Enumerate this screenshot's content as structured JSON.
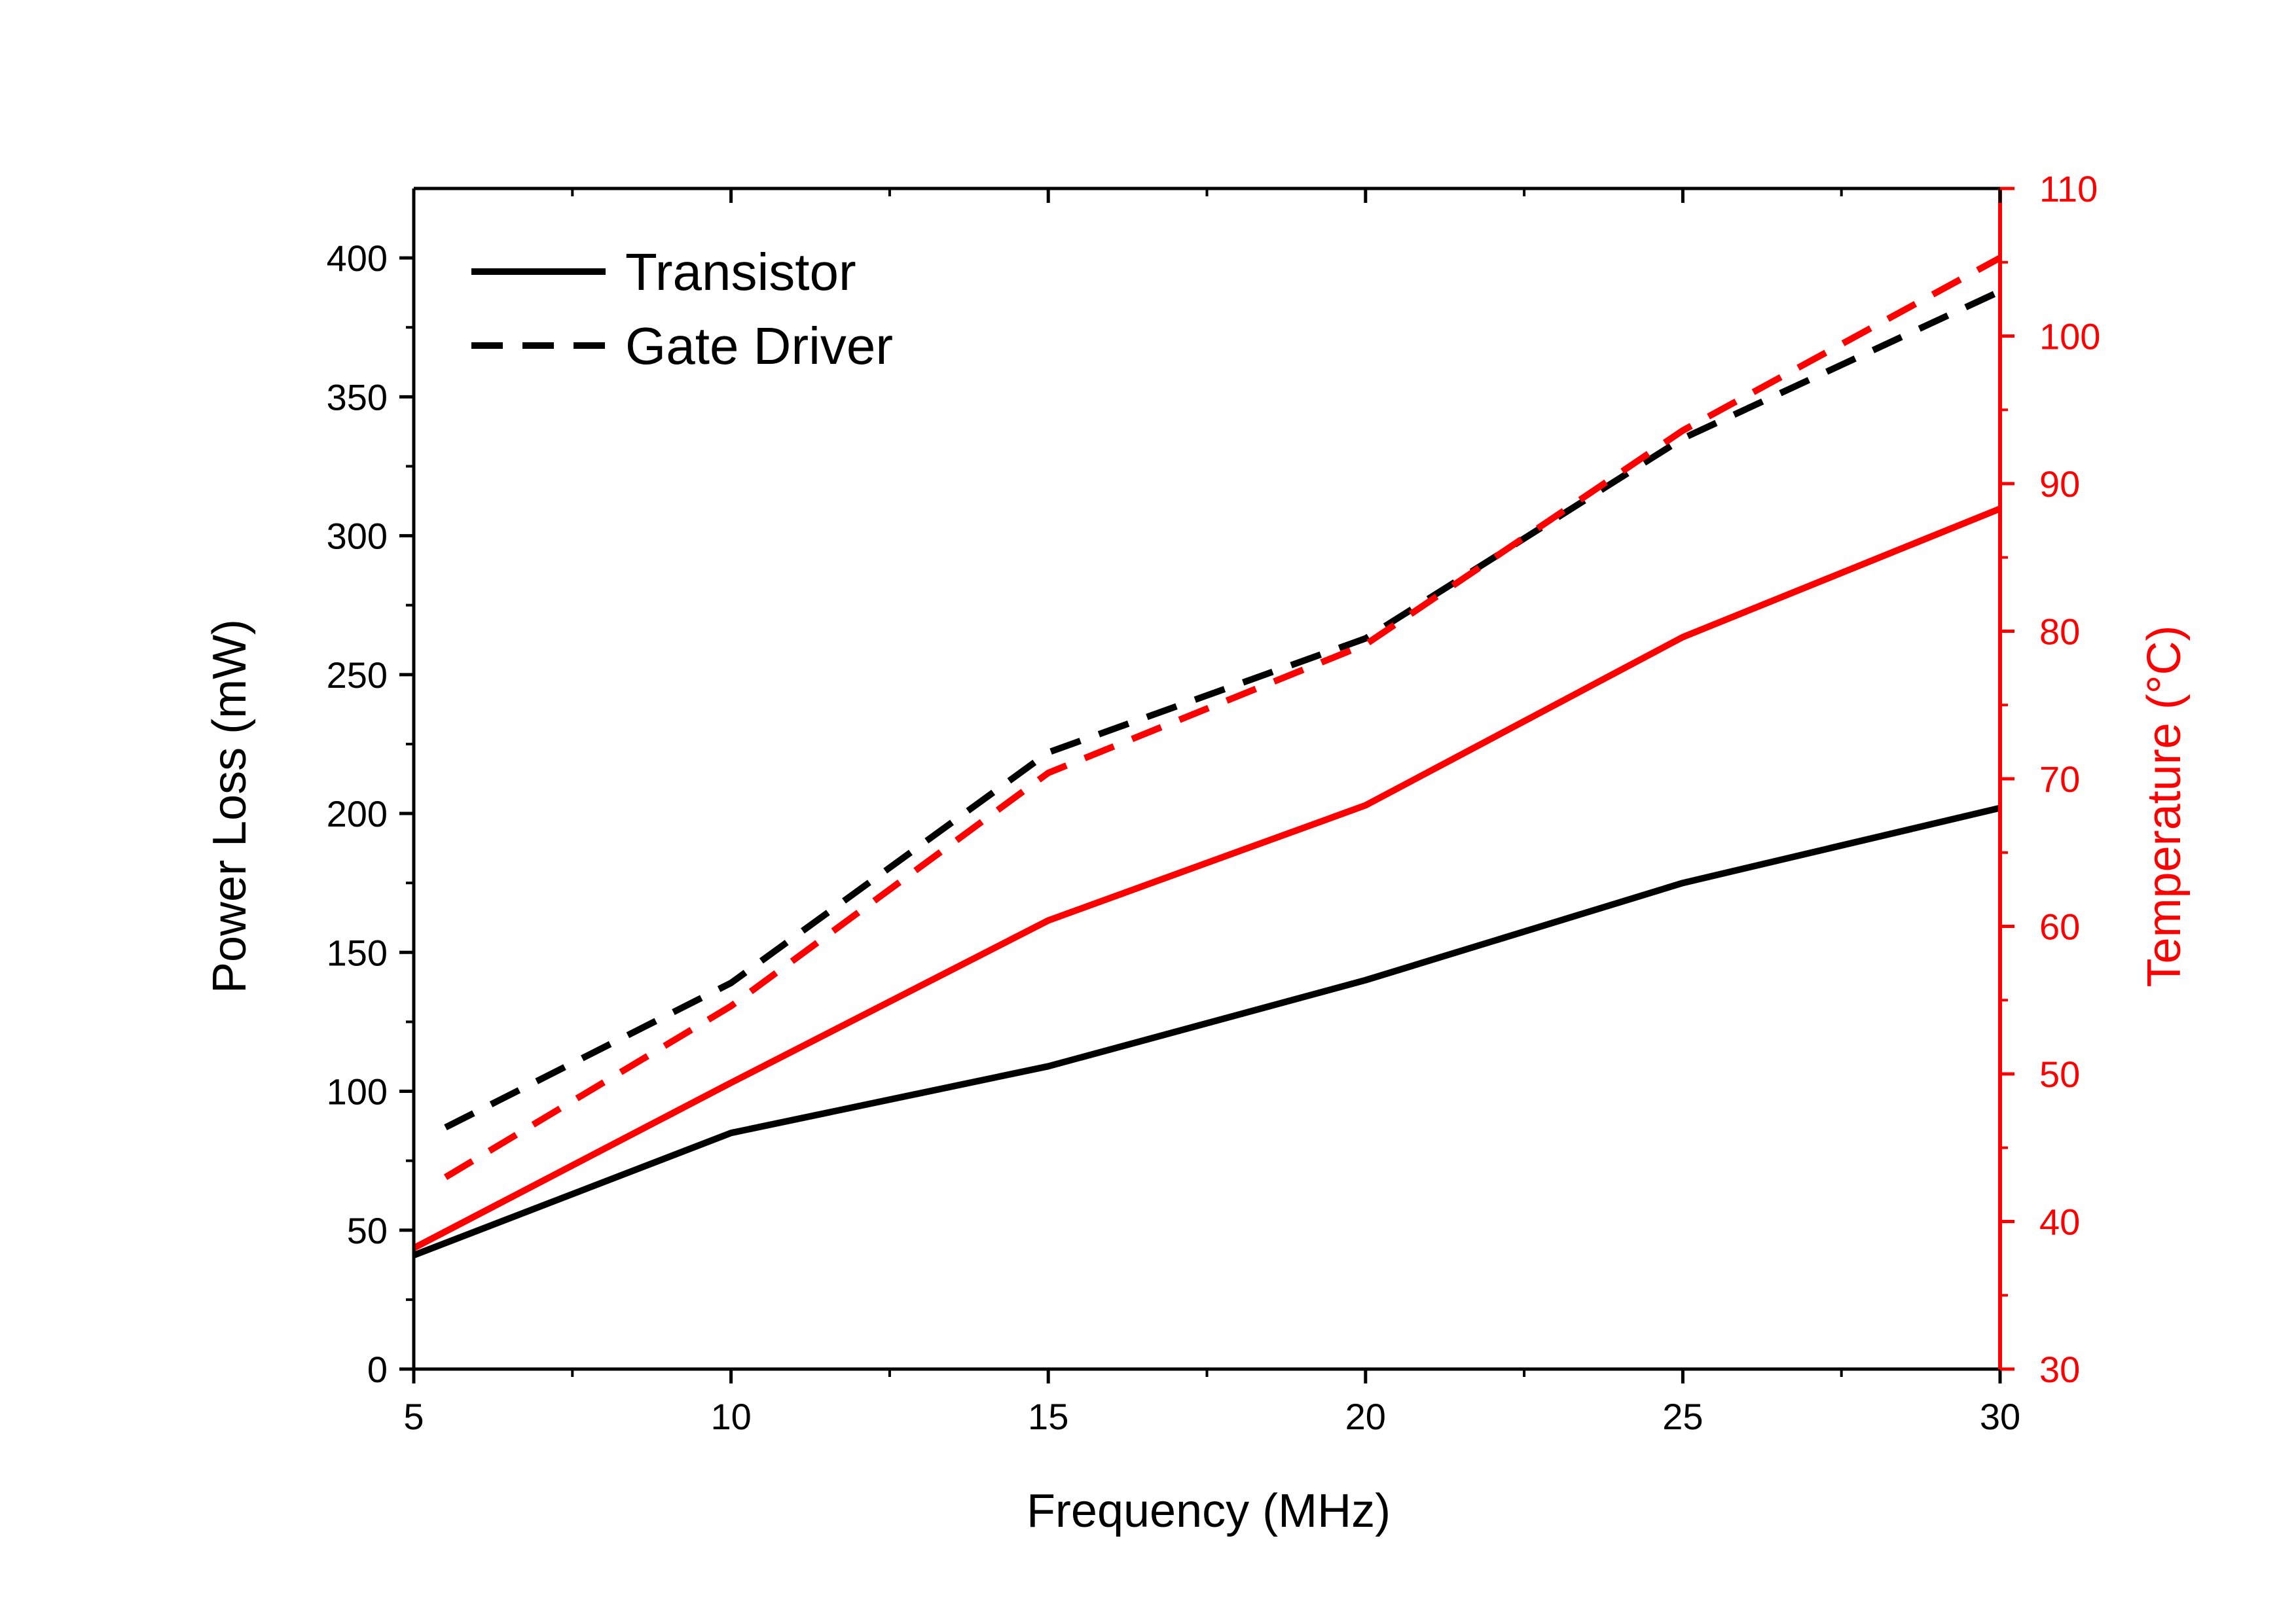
{
  "colors": {
    "primary": "#000000",
    "secondary": "#ff0000",
    "background": "#ffffff"
  },
  "chart_data": {
    "type": "line",
    "title": "",
    "xlabel": "Frequency (MHz)",
    "ylabel_left": "Power Loss (mW)",
    "ylabel_right": "Temperature (°C)",
    "xlim": [
      5,
      30
    ],
    "ylim_left": [
      0,
      425
    ],
    "ylim_right": [
      30,
      110
    ],
    "x_ticks": [
      5,
      10,
      15,
      20,
      25,
      30
    ],
    "y_left_ticks": [
      0,
      50,
      100,
      150,
      200,
      250,
      300,
      350,
      400
    ],
    "y_right_ticks": [
      30,
      40,
      50,
      60,
      70,
      80,
      90,
      100,
      110
    ],
    "grid": false,
    "legend": {
      "position": "top-left",
      "entries": [
        {
          "label": "Transistor",
          "style": "solid"
        },
        {
          "label": "Gate Driver",
          "style": "dashed"
        }
      ]
    },
    "series": [
      {
        "component": "Transistor",
        "quantity": "Power Loss",
        "axis": "left",
        "color": "#000000",
        "style": "solid",
        "x": [
          5,
          10,
          15,
          20,
          25,
          30
        ],
        "y": [
          41,
          85,
          109,
          140,
          175,
          202
        ]
      },
      {
        "component": "Gate Driver",
        "quantity": "Power Loss",
        "axis": "left",
        "color": "#000000",
        "style": "dashed",
        "x": [
          5.5,
          10,
          15,
          20,
          25,
          30
        ],
        "y": [
          87,
          139,
          222,
          263,
          335,
          388
        ]
      },
      {
        "component": "Transistor",
        "quantity": "Temperature",
        "axis": "right",
        "color": "#ff0000",
        "style": "solid",
        "x": [
          5,
          10,
          15,
          20,
          25,
          30
        ],
        "y": [
          38.2,
          49.4,
          60.4,
          68.2,
          79.6,
          88.3
        ]
      },
      {
        "component": "Gate Driver",
        "quantity": "Temperature",
        "axis": "right",
        "color": "#ff0000",
        "style": "dashed",
        "x": [
          5.5,
          10,
          15,
          20,
          25,
          30
        ],
        "y": [
          43,
          54.6,
          70.4,
          79.1,
          93.6,
          105.3
        ]
      }
    ]
  }
}
